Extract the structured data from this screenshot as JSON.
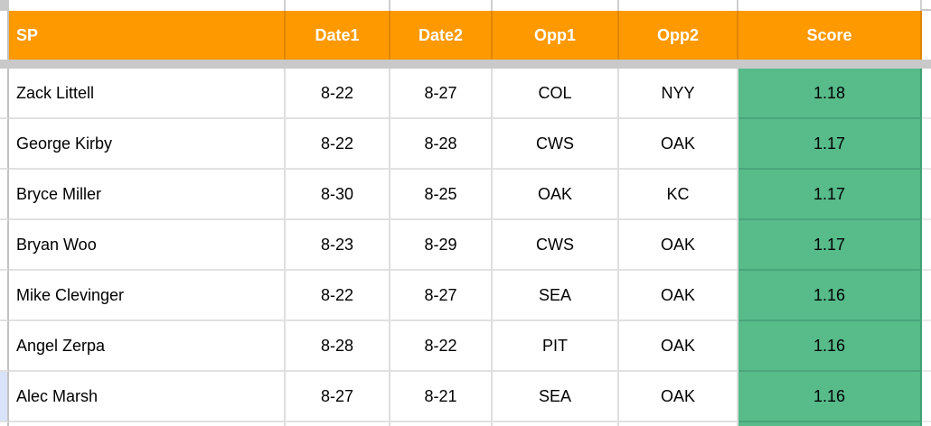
{
  "sheet": {
    "header": {
      "columns": [
        "SP",
        "Date1",
        "Date2",
        "Opp1",
        "Opp2",
        "Score"
      ]
    },
    "rows": [
      {
        "sp": "Zack Littell",
        "date1": "8-22",
        "date2": "8-27",
        "opp1": "COL",
        "opp2": "NYY",
        "score": "1.18"
      },
      {
        "sp": "George Kirby",
        "date1": "8-22",
        "date2": "8-28",
        "opp1": "CWS",
        "opp2": "OAK",
        "score": "1.17"
      },
      {
        "sp": "Bryce Miller",
        "date1": "8-30",
        "date2": "8-25",
        "opp1": "OAK",
        "opp2": "KC",
        "score": "1.17"
      },
      {
        "sp": "Bryan Woo",
        "date1": "8-23",
        "date2": "8-29",
        "opp1": "CWS",
        "opp2": "OAK",
        "score": "1.17"
      },
      {
        "sp": "Mike Clevinger",
        "date1": "8-22",
        "date2": "8-27",
        "opp1": "SEA",
        "opp2": "OAK",
        "score": "1.16"
      },
      {
        "sp": "Angel Zerpa",
        "date1": "8-28",
        "date2": "8-22",
        "opp1": "PIT",
        "opp2": "OAK",
        "score": "1.16"
      },
      {
        "sp": "Alec Marsh",
        "date1": "8-27",
        "date2": "8-21",
        "opp1": "SEA",
        "opp2": "OAK",
        "score": "1.16"
      }
    ],
    "colors": {
      "header_bg": "#ff9900",
      "header_text": "#ffffff",
      "score_bg": "#57bb8a",
      "freeze_bar": "#c9c9c9",
      "selection_tint": "#d8e2f9"
    }
  }
}
